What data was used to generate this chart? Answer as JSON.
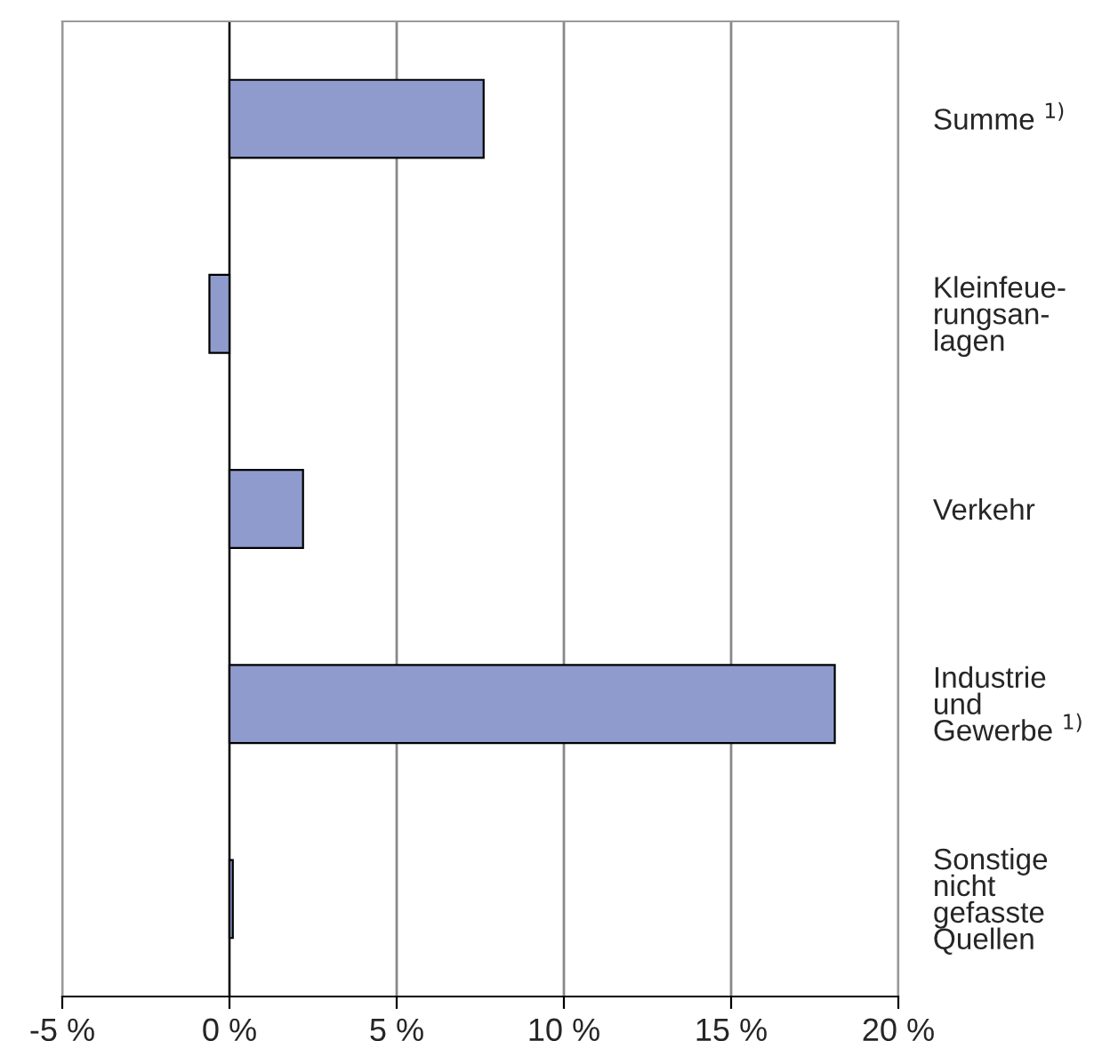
{
  "chart_data": {
    "type": "bar",
    "orientation": "horizontal",
    "categories": [
      "Summe $^{1)}$",
      "Kleinfeue-\nrungsan-\nlagen",
      "Verkehr",
      "Industrie\nund\nGewerbe $^{1)}$",
      "Sonstige\nnicht\ngefasste\nQuellen"
    ],
    "values": [
      7.6,
      -0.6,
      2.2,
      18.1,
      0.1
    ],
    "color": "#8f9bcc",
    "xlim": [
      -5,
      20
    ],
    "xticks": [
      {
        "value": -5,
        "label": "-5 %"
      },
      {
        "value": 0,
        "label": "0 %"
      },
      {
        "value": 5,
        "label": "5 %"
      },
      {
        "value": 10,
        "label": "10 %"
      },
      {
        "value": 15,
        "label": "15 %"
      },
      {
        "value": 20,
        "label": "20 %"
      }
    ],
    "grid": "x",
    "legend": false
  }
}
